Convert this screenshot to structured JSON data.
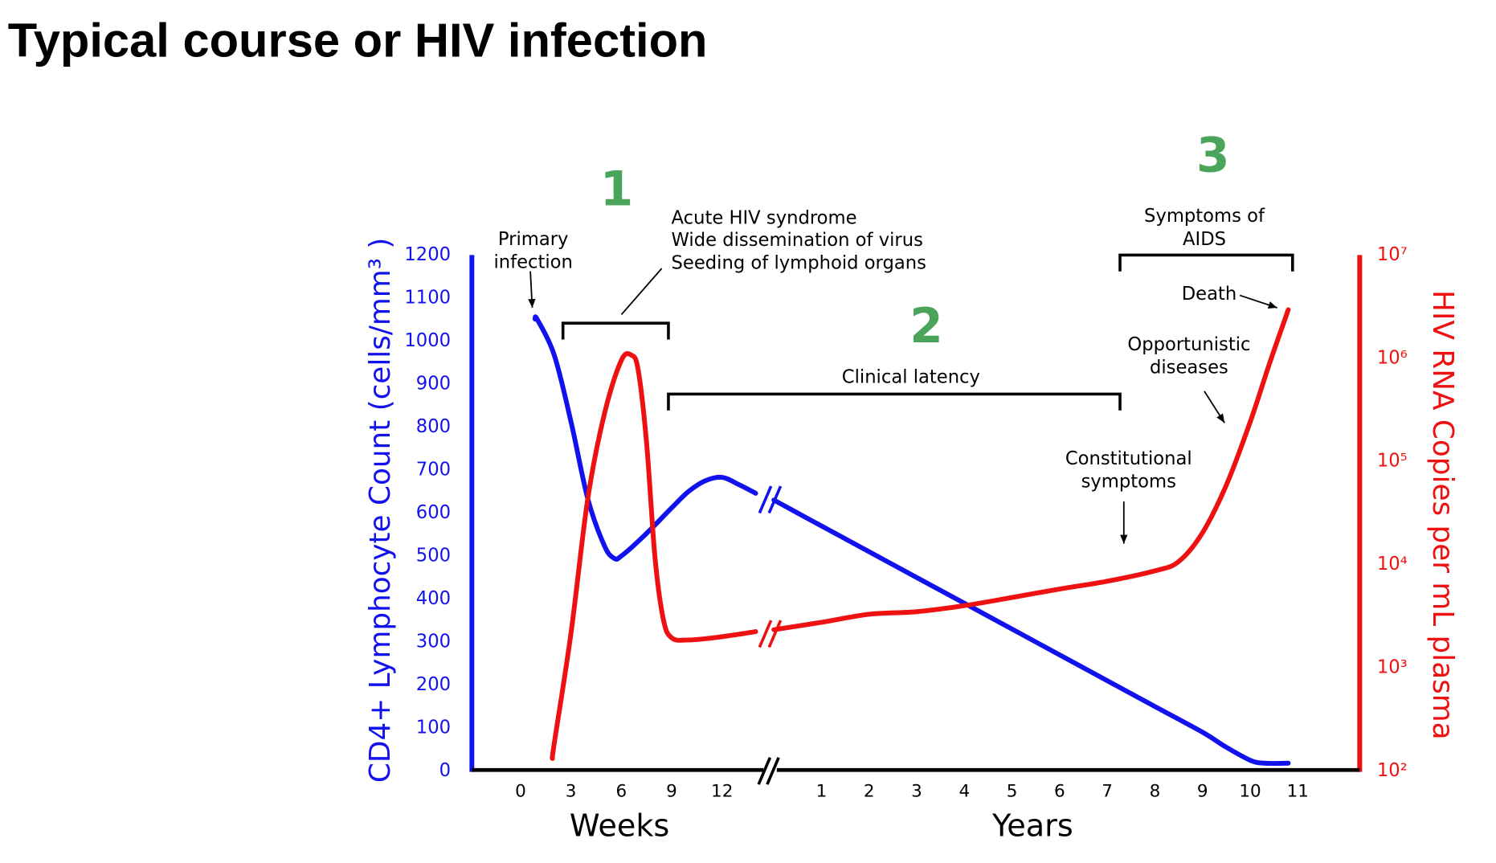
{
  "chart_data": {
    "type": "line",
    "title": "Typical course or HIV infection",
    "ylabel": "CD4+ Lymphocyte Count (cells/mm³ )",
    "y2label": "HIV RNA Copies per mL plasma",
    "ylim": [
      0,
      1200
    ],
    "yticks": [
      0,
      100,
      200,
      300,
      400,
      500,
      600,
      700,
      800,
      900,
      1000,
      1100,
      1200
    ],
    "y2lim": [
      100,
      10000000
    ],
    "y2scale": "log",
    "y2ticks": [
      {
        "value": 100,
        "label": "10²"
      },
      {
        "value": 1000,
        "label": "10³"
      },
      {
        "value": 10000,
        "label": "10⁴"
      },
      {
        "value": 100000,
        "label": "10⁵"
      },
      {
        "value": 1000000,
        "label": "10⁶"
      },
      {
        "value": 10000000,
        "label": "10⁷"
      }
    ],
    "x_axes": [
      {
        "label": "Weeks",
        "xlim": [
          -2.9,
          14.8
        ],
        "xticks": [
          0,
          3,
          6,
          9,
          12
        ]
      },
      {
        "label": "Years",
        "xlim": [
          -0.1,
          12.3
        ],
        "xticks": [
          1,
          2,
          3,
          4,
          5,
          6,
          7,
          8,
          9,
          10,
          11
        ]
      }
    ],
    "series": [
      {
        "color": "#1212ee",
        "segments": [
          {
            "x": [
              0.86,
              1,
              2,
              3,
              4,
              5,
              5.6,
              6,
              7,
              8,
              9,
              10,
              11,
              12,
              13,
              14
            ],
            "values": [
              1051,
              1050,
              968,
              813,
              634,
              523,
              494,
              500,
              534,
              572,
              612,
              650,
              675,
              683,
              666,
              646
            ]
          },
          {
            "x": [
              0,
              1,
              2,
              3,
              4,
              5,
              6,
              7,
              8,
              9,
              9.5,
              10,
              10.3,
              10.8
            ],
            "values": [
              630,
              570,
              510,
              450,
              390,
              330,
              270,
              210,
              150,
              90,
              55,
              25,
              18,
              18
            ]
          }
        ]
      },
      {
        "color": "#ee1111",
        "axis": "y2",
        "segments": [
          {
            "x": [
              1.9,
              2,
              3,
              4,
              5,
              6,
              6.6,
              7,
              7.5,
              8,
              8.5,
              9,
              10,
              12,
              14
            ],
            "values": [
              132,
              182,
              2140,
              43000,
              293000,
              955000,
              1070000,
              776000,
              155000,
              12000,
              2950,
              1950,
              1860,
              2000,
              2240
            ]
          },
          {
            "x": [
              0,
              1,
              2,
              3,
              4,
              5,
              6,
              7,
              8,
              8.5,
              9,
              9.5,
              10,
              10.4,
              10.8
            ],
            "values": [
              2340,
              2760,
              3300,
              3500,
              4000,
              4800,
              5800,
              6900,
              8700,
              10700,
              20400,
              59000,
              240000,
              870000,
              2950000
            ]
          }
        ]
      }
    ],
    "annotations": [
      {
        "lines": [
          "Primary",
          "infection"
        ]
      },
      {
        "lines": [
          "Acute HIV syndrome",
          "Wide dissemination of virus",
          "Seeding of lymphoid organs"
        ]
      },
      {
        "lines": [
          "Clinical latency"
        ]
      },
      {
        "lines": [
          "Constitutional",
          "symptoms"
        ]
      },
      {
        "lines": [
          "Opportunistic",
          "diseases"
        ]
      },
      {
        "lines": [
          "Symptoms of",
          "AIDS"
        ]
      },
      {
        "lines": [
          "Death"
        ]
      }
    ],
    "phases": [
      "1",
      "2",
      "3"
    ],
    "phase_color": "#4aa55a"
  }
}
